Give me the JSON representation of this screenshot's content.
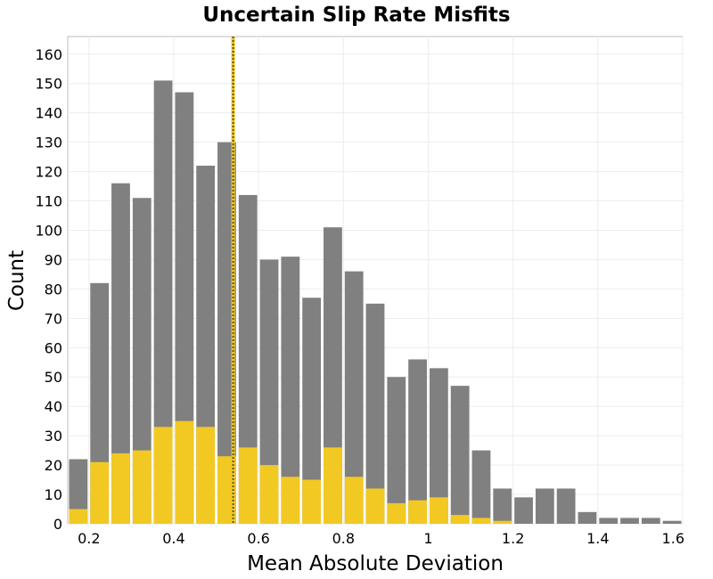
{
  "chart_data": {
    "type": "bar",
    "title": "Uncertain Slip Rate Misfits",
    "xlabel": "Mean Absolute Deviation",
    "ylabel": "Count",
    "xlim": [
      0.15,
      1.6
    ],
    "ylim": [
      0,
      166
    ],
    "bin_width": 0.05,
    "bin_starts": [
      0.15,
      0.2,
      0.25,
      0.3,
      0.35,
      0.4,
      0.45,
      0.5,
      0.55,
      0.6,
      0.65,
      0.7,
      0.75,
      0.8,
      0.85,
      0.9,
      0.95,
      1.0,
      1.05,
      1.1,
      1.15,
      1.2,
      1.25,
      1.3,
      1.35,
      1.4,
      1.45,
      1.5,
      1.55
    ],
    "x_ticks": [
      "0.2",
      "0.4",
      "0.6",
      "0.8",
      "1",
      "1.2",
      "1.4",
      "1.6"
    ],
    "x_tick_values": [
      0.2,
      0.4,
      0.6,
      0.8,
      1.0,
      1.2,
      1.4,
      1.6
    ],
    "y_ticks": [
      0,
      10,
      20,
      30,
      40,
      50,
      60,
      70,
      80,
      90,
      100,
      110,
      120,
      130,
      140,
      150,
      160
    ],
    "series": [
      {
        "color": "#808080",
        "values": [
          22,
          82,
          116,
          111,
          151,
          147,
          122,
          130,
          112,
          90,
          91,
          77,
          101,
          86,
          75,
          50,
          56,
          53,
          47,
          25,
          12,
          9,
          12,
          12,
          4,
          2,
          2,
          2,
          1
        ]
      },
      {
        "color": "#f2c923",
        "values": [
          5,
          21,
          24,
          25,
          33,
          35,
          33,
          23,
          26,
          20,
          16,
          15,
          26,
          16,
          12,
          7,
          8,
          9,
          3,
          2,
          1,
          0,
          0,
          0,
          0,
          0,
          0,
          0,
          0
        ]
      }
    ],
    "reference_line": {
      "x": 0.54,
      "color": "#555533"
    },
    "grid": true,
    "legend": "none"
  }
}
